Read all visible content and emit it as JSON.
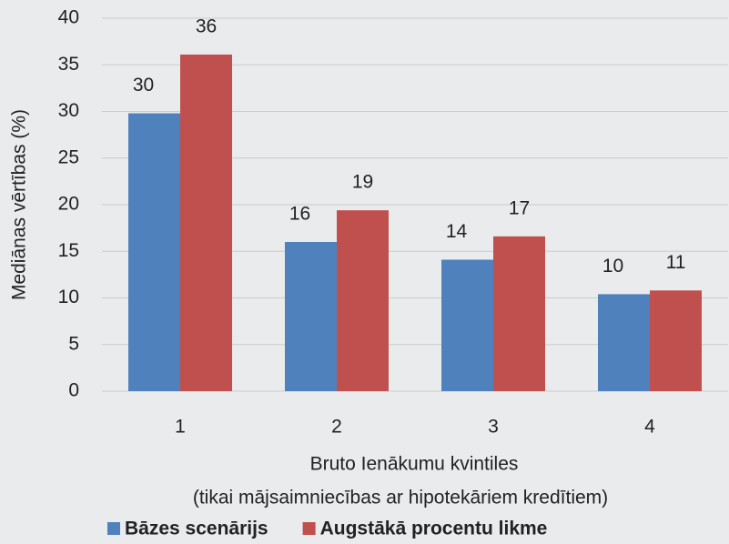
{
  "chart_data": {
    "type": "bar",
    "ylabel": "Mediānas vērtības (%)",
    "xlabel": [
      "Bruto Ienākumu kvintiles",
      "(tikai mājsaimniecības ar hipotekāriem kredītiem)"
    ],
    "categories": [
      "1",
      "2",
      "3",
      "4"
    ],
    "series": [
      {
        "name": "Bāzes scenārijs",
        "color": "#4f81bd",
        "values": [
          29.8,
          16,
          14.1,
          10.4
        ],
        "value_labels": [
          "30",
          "16",
          "14",
          "10"
        ]
      },
      {
        "name": "Augstākā procentu likme",
        "color": "#c0504d",
        "values": [
          36.1,
          19.4,
          16.6,
          10.8
        ],
        "value_labels": [
          "36",
          "19",
          "17",
          "11"
        ]
      }
    ],
    "ylim": [
      0,
      40
    ],
    "yticks": [
      0,
      5,
      10,
      15,
      20,
      25,
      30,
      35,
      40
    ],
    "grid": true,
    "legend": "bottom"
  }
}
